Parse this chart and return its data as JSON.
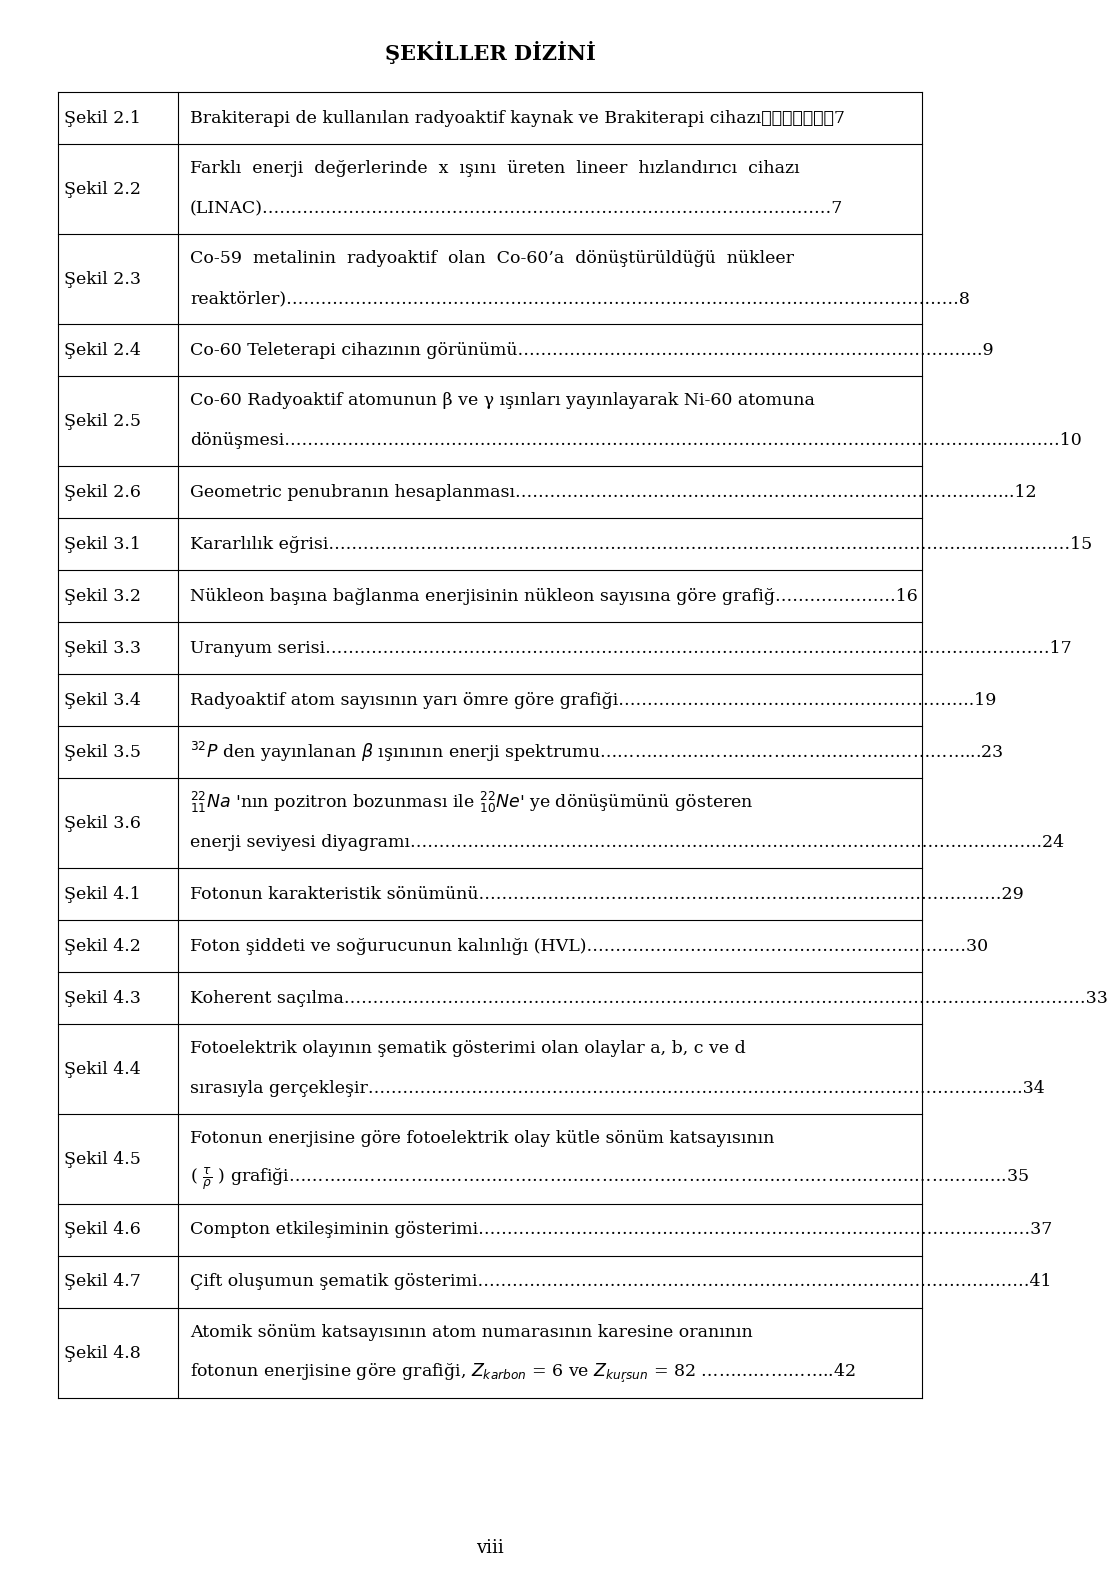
{
  "title": "ŞEKİLLER DİZİNİ",
  "background_color": "#ffffff",
  "text_color": "#000000",
  "rows": [
    {
      "label": "Şekil 2.1",
      "multiline": false,
      "lines": [
        "Brakiterapi de kullanılan radyoaktif kaynak ve Brakiterapi cihazı⋯⋯⋯⋯⋯⋯⋯7"
      ]
    },
    {
      "label": "Şekil 2.2",
      "multiline": true,
      "lines": [
        "Farklı  enerji  değerlerinde  x  ışını  üreten  lineer  hızlandırıcı  cihazı",
        "(LINAC)………………………………………………………………………………………7"
      ]
    },
    {
      "label": "Şekil 2.3",
      "multiline": true,
      "lines": [
        "Co-59  metalinin  radyoaktif  olan  Co-60’a  dönüştürüldüğü  nükleer",
        "reaktörler)………………………………………………………………………………………………………8"
      ]
    },
    {
      "label": "Şekil 2.4",
      "multiline": false,
      "lines": [
        "Co-60 Teleterapi cihazının görünümü……………………………………………………………………...9"
      ]
    },
    {
      "label": "Şekil 2.5",
      "multiline": true,
      "lines": [
        "Co-60 Radyoaktif atomunun β ve γ ışınları yayınlayarak Ni-60 atomuna",
        "dönüşmesi……………………………………………………………………………………………………………...………10"
      ]
    },
    {
      "label": "Şekil 2.6",
      "multiline": false,
      "lines": [
        "Geometric penubranın hesaplanması…………………………………………………………………………...12"
      ]
    },
    {
      "label": "Şekil 3.1",
      "multiline": false,
      "lines": [
        "Kararlılık eğrisi…………………………………………………………………………………………………………………15"
      ]
    },
    {
      "label": "Şekil 3.2",
      "multiline": false,
      "lines": [
        "Nükleon başına bağlanma enerjisinin nükleon sayısına göre grafiğ…………………16"
      ]
    },
    {
      "label": "Şekil 3.3",
      "multiline": false,
      "lines": [
        "Uranyum serisi………………………………………………………………………………………………………………17"
      ]
    },
    {
      "label": "Şekil 3.4",
      "multiline": false,
      "lines": [
        "Radyoaktif atom sayısının yarı ömre göre grafiği……………………………………………………..19"
      ]
    },
    {
      "label": "Şekil 3.5",
      "multiline": false,
      "special": "3.5",
      "lines": [
        "den yayınlanan  ışınının enerji spektrumu……………………………………………………………...23"
      ]
    },
    {
      "label": "Şekil 3.6",
      "multiline": true,
      "special": "3.6",
      "lines": [
        "nın pozitron bozunması ile  ye dönüşümünü gösteren",
        "enerji seviyesi diyagramı………………………………………………………………………………………………..24"
      ]
    },
    {
      "label": "Şekil 4.1",
      "multiline": false,
      "lines": [
        "Fotonun karakteristik sönümünü………………………………….……………………………………………29"
      ]
    },
    {
      "label": "Şekil 4.2",
      "multiline": false,
      "lines": [
        "Foton şiddeti ve soğurucunun kalınlığı (HVL)…………………………………………………………30"
      ]
    },
    {
      "label": "Şekil 4.3",
      "multiline": false,
      "lines": [
        "Koherent saçılma…………………………………………………………………………………………………………………33"
      ]
    },
    {
      "label": "Şekil 4.4",
      "multiline": true,
      "lines": [
        "Fotoelektrik olayının şematik gösterimi olan olaylar a, b, c ve d",
        "sırasıyla gerçekleşir…………………………………………………………………………………………………...34"
      ]
    },
    {
      "label": "Şekil 4.5",
      "multiline": true,
      "special": "4.5",
      "lines": [
        "Fotonun enerjisine göre fotoelektrik olay kütle sönüm katsayısının",
        ") grafiği………………………………………………………………………………………………………………………………….35"
      ]
    },
    {
      "label": "Şekil 4.6",
      "multiline": false,
      "lines": [
        "Compton etkileşiminin gösterimi……………………………………………………………………………………37"
      ]
    },
    {
      "label": "Şekil 4.7",
      "multiline": false,
      "lines": [
        "Çift oluşumun şematik gösterimi……………………………………………………………………………………41"
      ]
    },
    {
      "label": "Şekil 4.8",
      "multiline": true,
      "special": "4.8",
      "lines": [
        "Atomik sönüm katsayısının atom numarasının karesine oranının",
        "fotonun enerjisine göre grafiği,  = 6 ve  = 82 ………………………………..42"
      ]
    }
  ],
  "page_number": "viii"
}
